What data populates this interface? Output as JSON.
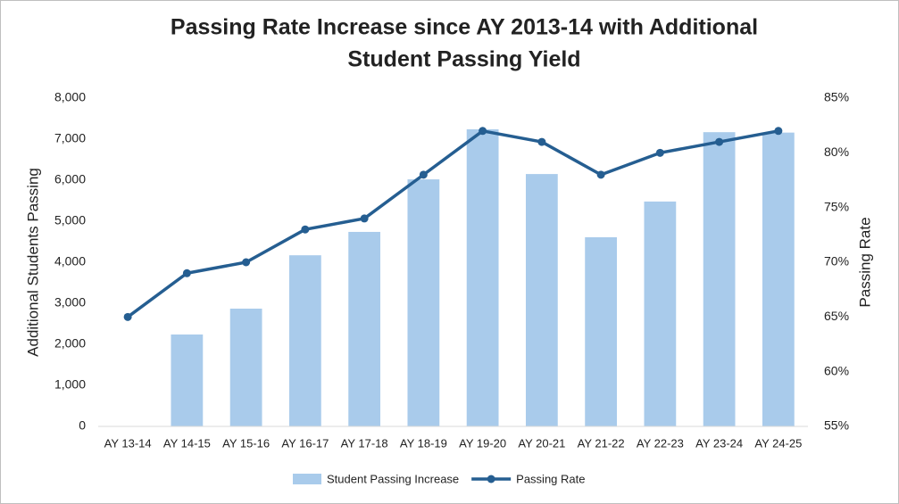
{
  "chart_data": {
    "type": "bar",
    "title": "Passing Rate Increase since AY 2013-14 with Additional Student Passing Yield",
    "y_label": "Additional Students Passing",
    "y2_label": "Passing Rate",
    "categories": [
      "AY 13-14",
      "AY 14-15",
      "AY 15-16",
      "AY 16-17",
      "AY 17-18",
      "AY 18-19",
      "AY 19-20",
      "AY 20-21",
      "AY 21-22",
      "AY 22-23",
      "AY 23-24",
      "AY 24-25"
    ],
    "series": [
      {
        "name": "Student Passing Increase",
        "type": "bar",
        "color": "#a9cbeb",
        "values": [
          0,
          2240,
          2870,
          4170,
          4740,
          6020,
          7240,
          6150,
          4610,
          5480,
          7170,
          7160
        ]
      },
      {
        "name": "Passing Rate",
        "type": "line",
        "axis": "y2",
        "color": "#255e91",
        "values": [
          65,
          69,
          70,
          73,
          74,
          78,
          82,
          81,
          78,
          80,
          81,
          82
        ]
      }
    ],
    "ylim": [
      0,
      8000
    ],
    "yticks": [
      0,
      {
        "value": 1000,
        "label": "1,000"
      },
      {
        "value": 2000,
        "label": "2,000"
      },
      {
        "value": 3000,
        "label": "3,000"
      },
      {
        "value": 4000,
        "label": "4,000"
      },
      {
        "value": 5000,
        "label": "5,000"
      },
      {
        "value": 6000,
        "label": "6,000"
      },
      {
        "value": 7000,
        "label": "7,000"
      },
      {
        "value": 8000,
        "label": "8,000"
      }
    ],
    "y2lim": [
      55,
      85
    ],
    "y2ticks": [
      {
        "value": 55,
        "label": "55%"
      },
      {
        "value": 60,
        "label": "60%"
      },
      {
        "value": 65,
        "label": "65%"
      },
      {
        "value": 70,
        "label": "70%"
      },
      {
        "value": 75,
        "label": "75%"
      },
      {
        "value": 80,
        "label": "80%"
      },
      {
        "value": 85,
        "label": "85%"
      }
    ],
    "grid": false,
    "legend": "bottom"
  }
}
